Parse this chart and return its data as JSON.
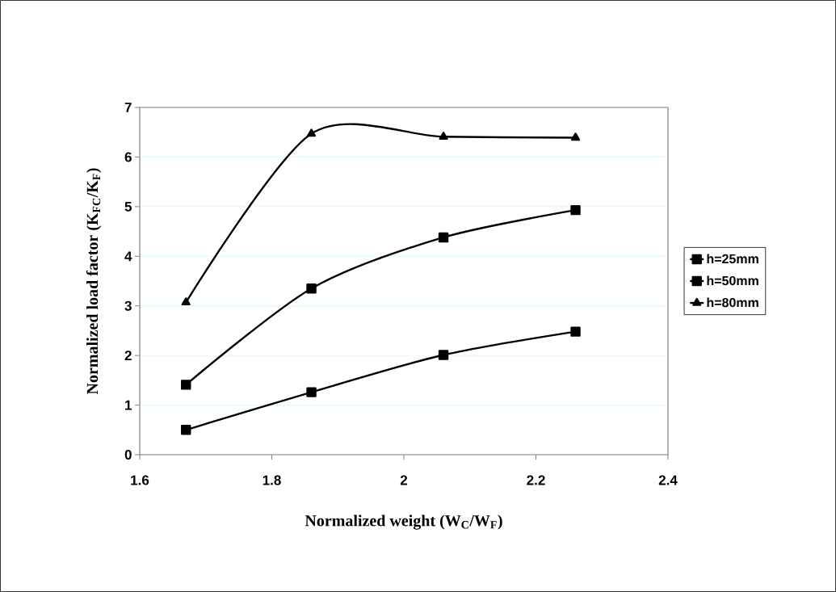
{
  "chart_data": {
    "type": "line",
    "xlabel": "Normalized weight (W$_{C}$/W$_{F}$)",
    "ylabel": "Normalized load factor (K$_{FC}$/K$_{F}$)",
    "x": [
      1.67,
      1.86,
      2.06,
      2.26
    ],
    "series": [
      {
        "name": "h=25mm",
        "color": "#000000",
        "marker": "square",
        "values": [
          0.5,
          1.26,
          2.01,
          2.48
        ]
      },
      {
        "name": "h=50mm",
        "color": "#000000",
        "marker": "square",
        "values": [
          1.41,
          3.35,
          4.38,
          4.93
        ]
      },
      {
        "name": "h=80mm",
        "color": "#000000",
        "marker": "triangle",
        "values": [
          3.07,
          6.47,
          6.41,
          6.39
        ]
      }
    ],
    "xlim": [
      1.6,
      2.4
    ],
    "xticks": [
      1.6,
      1.8,
      2,
      2.2,
      2.4
    ],
    "ylim": [
      0,
      7
    ],
    "yticks": [
      0,
      1,
      2,
      3,
      4,
      5,
      6,
      7
    ],
    "grid": "y",
    "legend": "right",
    "line_style": "solid"
  }
}
